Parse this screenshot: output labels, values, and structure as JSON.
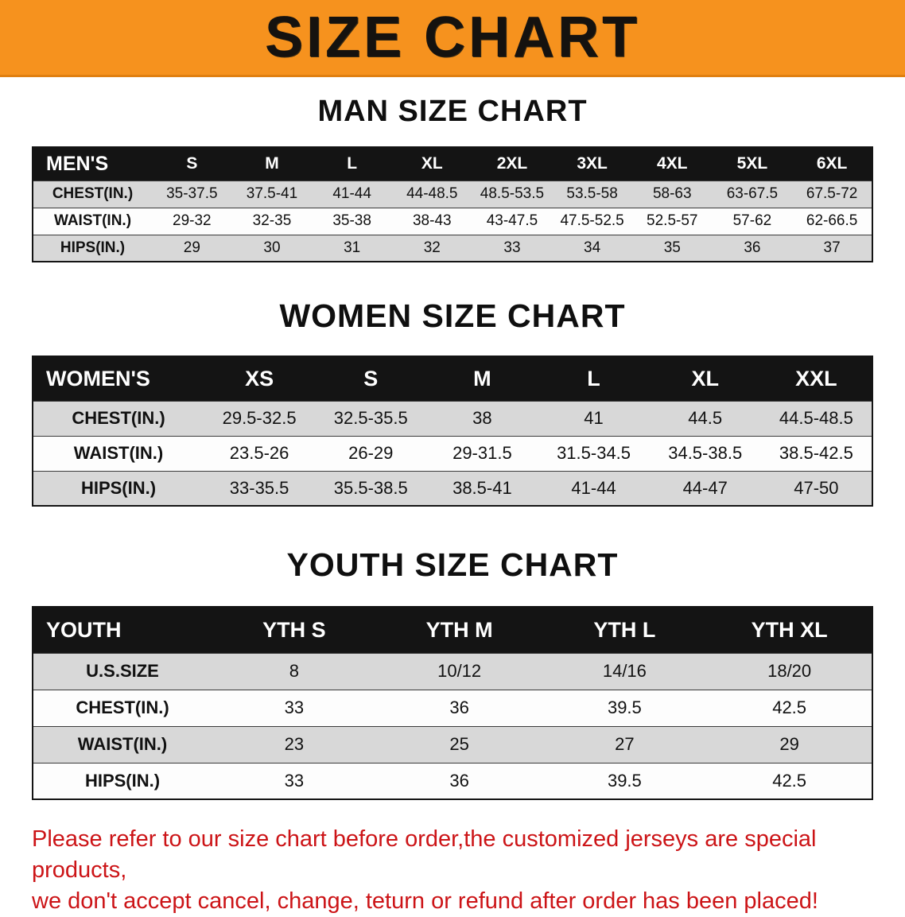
{
  "banner": {
    "title": "SIZE CHART",
    "bg_color": "#f6921e"
  },
  "sections": [
    {
      "heading": "MAN SIZE CHART",
      "table": {
        "header": [
          "MEN'S",
          "S",
          "M",
          "L",
          "XL",
          "2XL",
          "3XL",
          "4XL",
          "5XL",
          "6XL"
        ],
        "rows": [
          [
            "CHEST(IN.)",
            "35-37.5",
            "37.5-41",
            "41-44",
            "44-48.5",
            "48.5-53.5",
            "53.5-58",
            "58-63",
            "63-67.5",
            "67.5-72"
          ],
          [
            "WAIST(IN.)",
            "29-32",
            "32-35",
            "35-38",
            "38-43",
            "43-47.5",
            "47.5-52.5",
            "52.5-57",
            "57-62",
            "62-66.5"
          ],
          [
            "HIPS(IN.)",
            "29",
            "30",
            "31",
            "32",
            "33",
            "34",
            "35",
            "36",
            "37"
          ]
        ]
      }
    },
    {
      "heading": "WOMEN SIZE CHART",
      "table": {
        "header": [
          "WOMEN'S",
          "XS",
          "S",
          "M",
          "L",
          "XL",
          "XXL"
        ],
        "rows": [
          [
            "CHEST(IN.)",
            "29.5-32.5",
            "32.5-35.5",
            "38",
            "41",
            "44.5",
            "44.5-48.5"
          ],
          [
            "WAIST(IN.)",
            "23.5-26",
            "26-29",
            "29-31.5",
            "31.5-34.5",
            "34.5-38.5",
            "38.5-42.5"
          ],
          [
            "HIPS(IN.)",
            "33-35.5",
            "35.5-38.5",
            "38.5-41",
            "41-44",
            "44-47",
            "47-50"
          ]
        ]
      }
    },
    {
      "heading": "YOUTH SIZE CHART",
      "table": {
        "header": [
          "YOUTH",
          "YTH S",
          "YTH M",
          "YTH L",
          "YTH XL"
        ],
        "rows": [
          [
            "U.S.SIZE",
            "8",
            "10/12",
            "14/16",
            "18/20"
          ],
          [
            "CHEST(IN.)",
            "33",
            "36",
            "39.5",
            "42.5"
          ],
          [
            "WAIST(IN.)",
            "23",
            "25",
            "27",
            "29"
          ],
          [
            "HIPS(IN.)",
            "33",
            "36",
            "39.5",
            "42.5"
          ]
        ]
      }
    }
  ],
  "footer": {
    "lines": [
      "Please refer to our size chart before order,the customized jerseys are special products,",
      "we don't accept cancel, change, teturn or refund after order has been placed!"
    ],
    "text_color": "#cc1417"
  },
  "colors": {
    "banner_orange": "#f6921e",
    "table_header_black": "#141414",
    "row_stripe_gray": "#d8d8d8",
    "footer_red": "#cc1417"
  }
}
